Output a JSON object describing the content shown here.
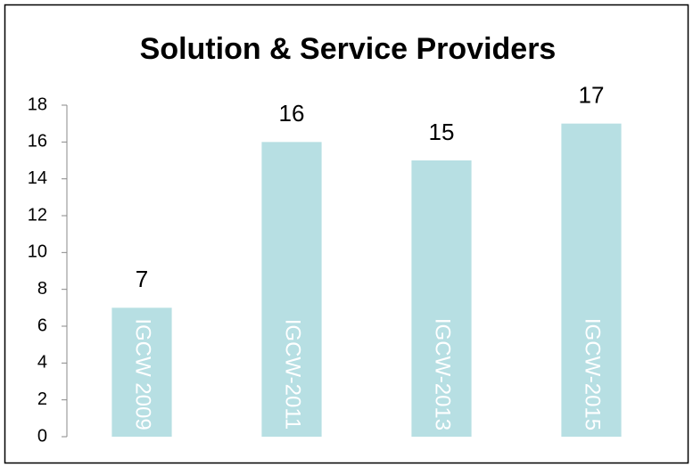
{
  "chart_data": {
    "type": "bar",
    "title": "Solution & Service Providers",
    "categories": [
      "IGCW 2009",
      "IGCW-2011",
      "IGCW-2013",
      "IGCW-2015"
    ],
    "values": [
      7,
      16,
      15,
      17
    ],
    "color": "#b7dfe3",
    "ylim": [
      0,
      18
    ],
    "yticks": [
      0,
      2,
      4,
      6,
      8,
      10,
      12,
      14,
      16,
      18
    ],
    "grid": false
  }
}
